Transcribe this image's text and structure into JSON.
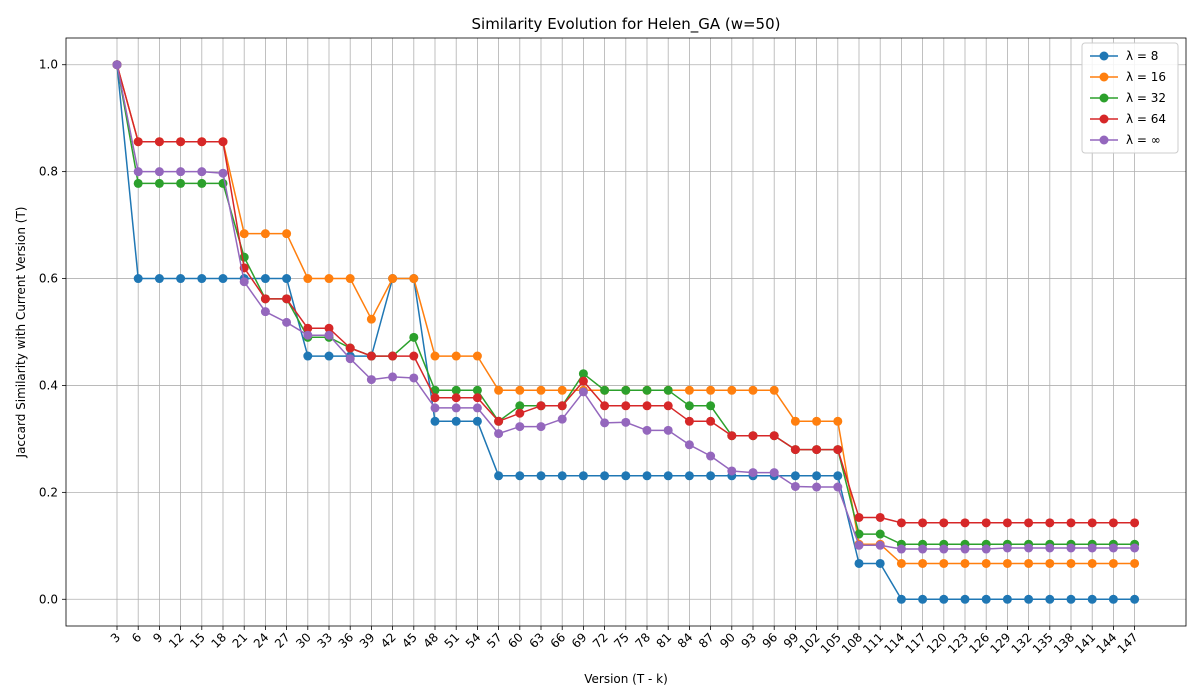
{
  "chart_data": {
    "type": "line",
    "title": "Similarity Evolution for Helen_GA (w=50)",
    "xlabel": "Version (T - k)",
    "ylabel": "Jaccard Similarity with Current Version (T)",
    "x": [
      3,
      6,
      9,
      12,
      15,
      18,
      21,
      24,
      27,
      30,
      33,
      36,
      39,
      42,
      45,
      48,
      51,
      54,
      57,
      60,
      63,
      66,
      69,
      72,
      75,
      78,
      81,
      84,
      87,
      90,
      93,
      96,
      99,
      102,
      105,
      108,
      111,
      114,
      117,
      120,
      123,
      126,
      129,
      132,
      135,
      138,
      141,
      144,
      147
    ],
    "ylim": [
      -0.05,
      1.05
    ],
    "yticks": [
      "0.0",
      "0.2",
      "0.4",
      "0.6",
      "0.8",
      "1.0"
    ],
    "grid": true,
    "legend_position": "top-right",
    "series": [
      {
        "name": "λ = 8",
        "color": "#1f77b4",
        "values": [
          1.0,
          0.6,
          0.6,
          0.6,
          0.6,
          0.6,
          0.6,
          0.6,
          0.6,
          0.455,
          0.455,
          0.455,
          0.455,
          0.6,
          0.6,
          0.333,
          0.333,
          0.333,
          0.231,
          0.231,
          0.231,
          0.231,
          0.231,
          0.231,
          0.231,
          0.231,
          0.231,
          0.231,
          0.231,
          0.231,
          0.231,
          0.231,
          0.231,
          0.231,
          0.231,
          0.067,
          0.067,
          0.0,
          0.0,
          0.0,
          0.0,
          0.0,
          0.0,
          0.0,
          0.0,
          0.0,
          0.0,
          0.0,
          0.0
        ]
      },
      {
        "name": "λ = 16",
        "color": "#ff7f0e",
        "values": [
          1.0,
          0.856,
          0.856,
          0.856,
          0.856,
          0.856,
          0.684,
          0.684,
          0.684,
          0.6,
          0.6,
          0.6,
          0.524,
          0.6,
          0.6,
          0.455,
          0.455,
          0.455,
          0.391,
          0.391,
          0.391,
          0.391,
          0.391,
          0.391,
          0.391,
          0.391,
          0.391,
          0.391,
          0.391,
          0.391,
          0.391,
          0.391,
          0.333,
          0.333,
          0.333,
          0.103,
          0.103,
          0.067,
          0.067,
          0.067,
          0.067,
          0.067,
          0.067,
          0.067,
          0.067,
          0.067,
          0.067,
          0.067,
          0.067
        ]
      },
      {
        "name": "λ = 32",
        "color": "#2ca02c",
        "values": [
          1.0,
          0.778,
          0.778,
          0.778,
          0.778,
          0.778,
          0.64,
          0.562,
          0.562,
          0.49,
          0.49,
          0.47,
          0.455,
          0.455,
          0.49,
          0.391,
          0.391,
          0.391,
          0.333,
          0.362,
          0.362,
          0.362,
          0.422,
          0.391,
          0.391,
          0.391,
          0.391,
          0.362,
          0.362,
          0.306,
          0.306,
          0.306,
          0.28,
          0.28,
          0.28,
          0.122,
          0.122,
          0.103,
          0.103,
          0.103,
          0.103,
          0.103,
          0.103,
          0.103,
          0.103,
          0.103,
          0.103,
          0.103,
          0.103
        ]
      },
      {
        "name": "λ = 64",
        "color": "#d62728",
        "values": [
          1.0,
          0.856,
          0.856,
          0.856,
          0.856,
          0.856,
          0.62,
          0.562,
          0.562,
          0.507,
          0.507,
          0.47,
          0.455,
          0.455,
          0.455,
          0.377,
          0.377,
          0.377,
          0.333,
          0.348,
          0.362,
          0.362,
          0.408,
          0.362,
          0.362,
          0.362,
          0.362,
          0.333,
          0.333,
          0.306,
          0.306,
          0.306,
          0.28,
          0.28,
          0.28,
          0.153,
          0.153,
          0.143,
          0.143,
          0.143,
          0.143,
          0.143,
          0.143,
          0.143,
          0.143,
          0.143,
          0.143,
          0.143,
          0.143
        ]
      },
      {
        "name": "λ = ∞",
        "color": "#9467bd",
        "values": [
          1.0,
          0.8,
          0.8,
          0.8,
          0.8,
          0.797,
          0.594,
          0.538,
          0.518,
          0.494,
          0.494,
          0.45,
          0.411,
          0.416,
          0.414,
          0.358,
          0.358,
          0.358,
          0.31,
          0.323,
          0.323,
          0.337,
          0.388,
          0.33,
          0.331,
          0.316,
          0.316,
          0.289,
          0.268,
          0.24,
          0.237,
          0.237,
          0.211,
          0.21,
          0.21,
          0.101,
          0.101,
          0.094,
          0.094,
          0.094,
          0.094,
          0.094,
          0.096,
          0.096,
          0.096,
          0.096,
          0.096,
          0.096,
          0.096
        ]
      }
    ]
  }
}
